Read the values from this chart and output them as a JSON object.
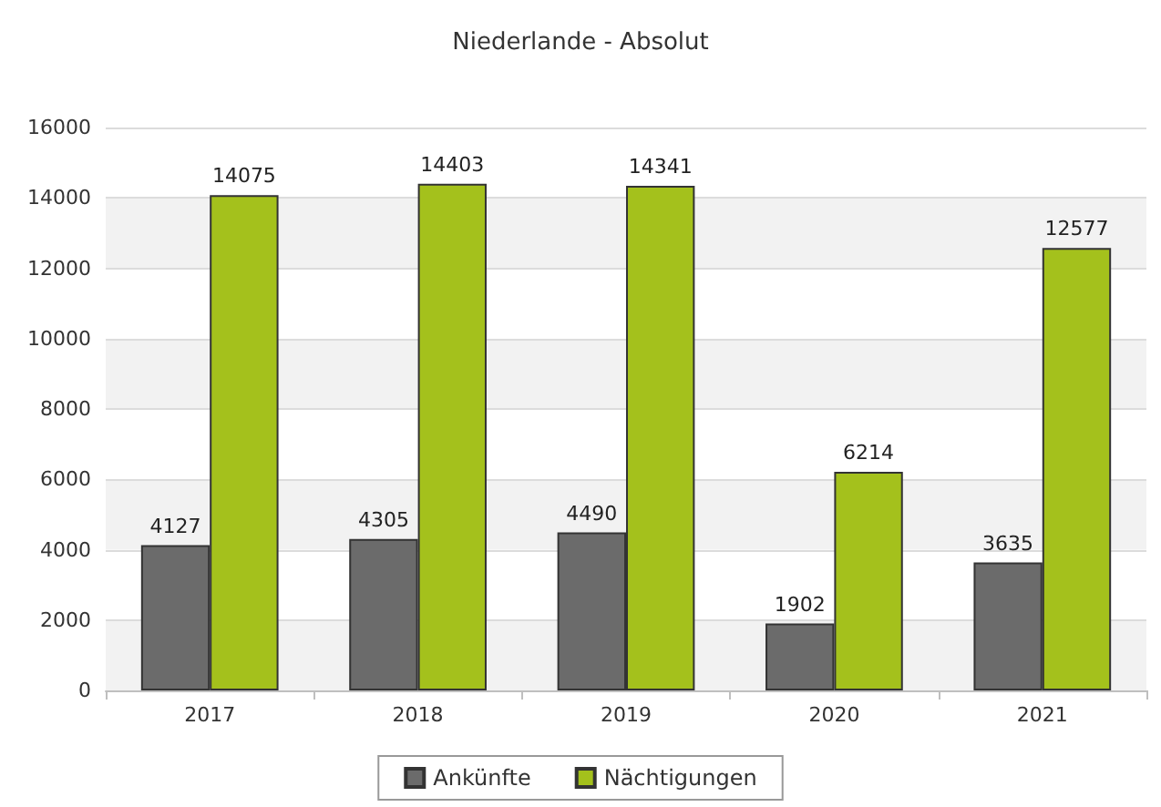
{
  "chart_data": {
    "type": "bar",
    "title": "Niederlande - Absolut",
    "categories": [
      "2017",
      "2018",
      "2019",
      "2020",
      "2021"
    ],
    "series": [
      {
        "name": "Ankünfte",
        "color": "#6b6b6b",
        "values": [
          4127,
          4305,
          4490,
          1902,
          3635
        ]
      },
      {
        "name": "Nächtigungen",
        "color": "#a4c11c",
        "values": [
          14075,
          14403,
          14341,
          6214,
          12577
        ]
      }
    ],
    "ylim": [
      0,
      16000
    ],
    "yticks": [
      0,
      2000,
      4000,
      6000,
      8000,
      10000,
      12000,
      14000,
      16000
    ],
    "grid": "y",
    "legend": "bottom",
    "data_labels": true
  }
}
